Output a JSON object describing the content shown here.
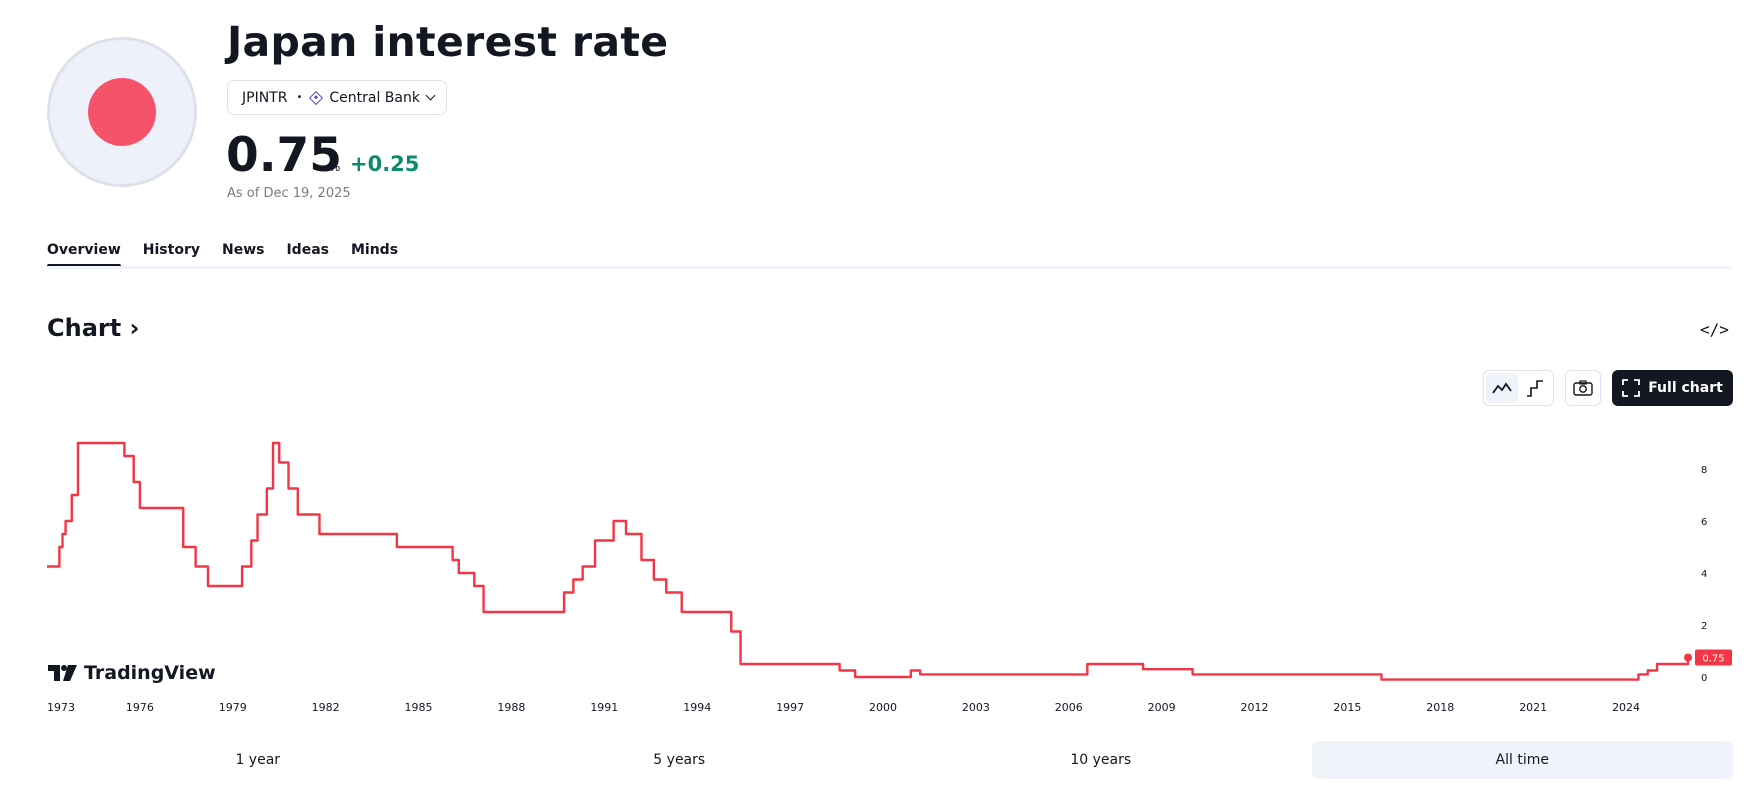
{
  "header": {
    "title": "Japan interest rate",
    "symbol": "JPINTR",
    "source": "Central Bank",
    "value": "0.75",
    "unit": "%",
    "change": "+0.25",
    "as_of": "As of Dec 19, 2025",
    "flag_color": "#f4536a"
  },
  "tabs": [
    "Overview",
    "History",
    "News",
    "Ideas",
    "Minds"
  ],
  "section": {
    "title": "Chart",
    "full_chart_label": "Full chart"
  },
  "icons": [
    "embed-code-icon",
    "line-style-icon",
    "step-line-icon",
    "camera-icon",
    "fullscreen-icon",
    "tradingview-logo-icon"
  ],
  "logo": "TradingView",
  "ranges": [
    "1 year",
    "5 years",
    "10 years",
    "All time"
  ],
  "active_range": "All time",
  "chart_data": {
    "type": "line",
    "line_color": "#f23645",
    "x_ticks": [
      "1973",
      "1976",
      "1979",
      "1982",
      "1985",
      "1988",
      "1991",
      "1994",
      "1997",
      "2000",
      "2003",
      "2006",
      "2009",
      "2012",
      "2015",
      "2018",
      "2021",
      "2024"
    ],
    "y_ticks": [
      0,
      2,
      4,
      6,
      8
    ],
    "y_axis_position": "right",
    "last_value_label": "0.75",
    "grid": false,
    "xlim": [
      1973,
      2026
    ],
    "ylim": [
      0,
      9
    ],
    "series": [
      {
        "x": [
          1973.0,
          1973.4,
          1973.5,
          1973.6,
          1973.8,
          1973.9,
          1974.0,
          1974.8,
          1975.5,
          1975.8,
          1976.0,
          1976.1,
          1977.4,
          1977.8,
          1978.2,
          1979.3,
          1979.6,
          1979.8,
          1980.1,
          1980.3,
          1980.5,
          1980.8,
          1981.1,
          1981.4,
          1981.8,
          1982.6,
          1984.3,
          1985.9,
          1986.1,
          1986.3,
          1986.8,
          1987.1,
          1989.4,
          1989.7,
          1990.0,
          1990.3,
          1990.7,
          1991.3,
          1991.7,
          1991.9,
          1992.2,
          1992.6,
          1993.0,
          1993.5,
          1995.1,
          1995.4,
          1998.2,
          1998.6,
          1999.1,
          2000.5,
          2000.9,
          2001.2,
          2006.1,
          2006.6,
          2008.2,
          2008.4,
          2010.0,
          2015.2,
          2016.1,
          2024.1,
          2024.4,
          2024.7,
          2025.0,
          2025.9,
          2026.0
        ],
        "y": [
          4.25,
          5.0,
          5.5,
          6.0,
          7.0,
          7.0,
          9.0,
          9.0,
          8.5,
          7.5,
          6.5,
          6.5,
          5.0,
          4.25,
          3.5,
          4.25,
          5.25,
          6.25,
          7.25,
          9.0,
          8.25,
          7.25,
          6.25,
          6.25,
          5.5,
          5.5,
          5.0,
          5.0,
          4.5,
          4.0,
          3.5,
          2.5,
          2.5,
          3.25,
          3.75,
          4.25,
          5.25,
          6.0,
          5.5,
          5.5,
          4.5,
          3.75,
          3.25,
          2.5,
          1.75,
          0.5,
          0.5,
          0.25,
          0.0,
          0.0,
          0.25,
          0.1,
          0.1,
          0.5,
          0.5,
          0.3,
          0.1,
          0.1,
          -0.1,
          -0.1,
          0.1,
          0.25,
          0.5,
          0.5,
          0.75
        ]
      }
    ]
  }
}
